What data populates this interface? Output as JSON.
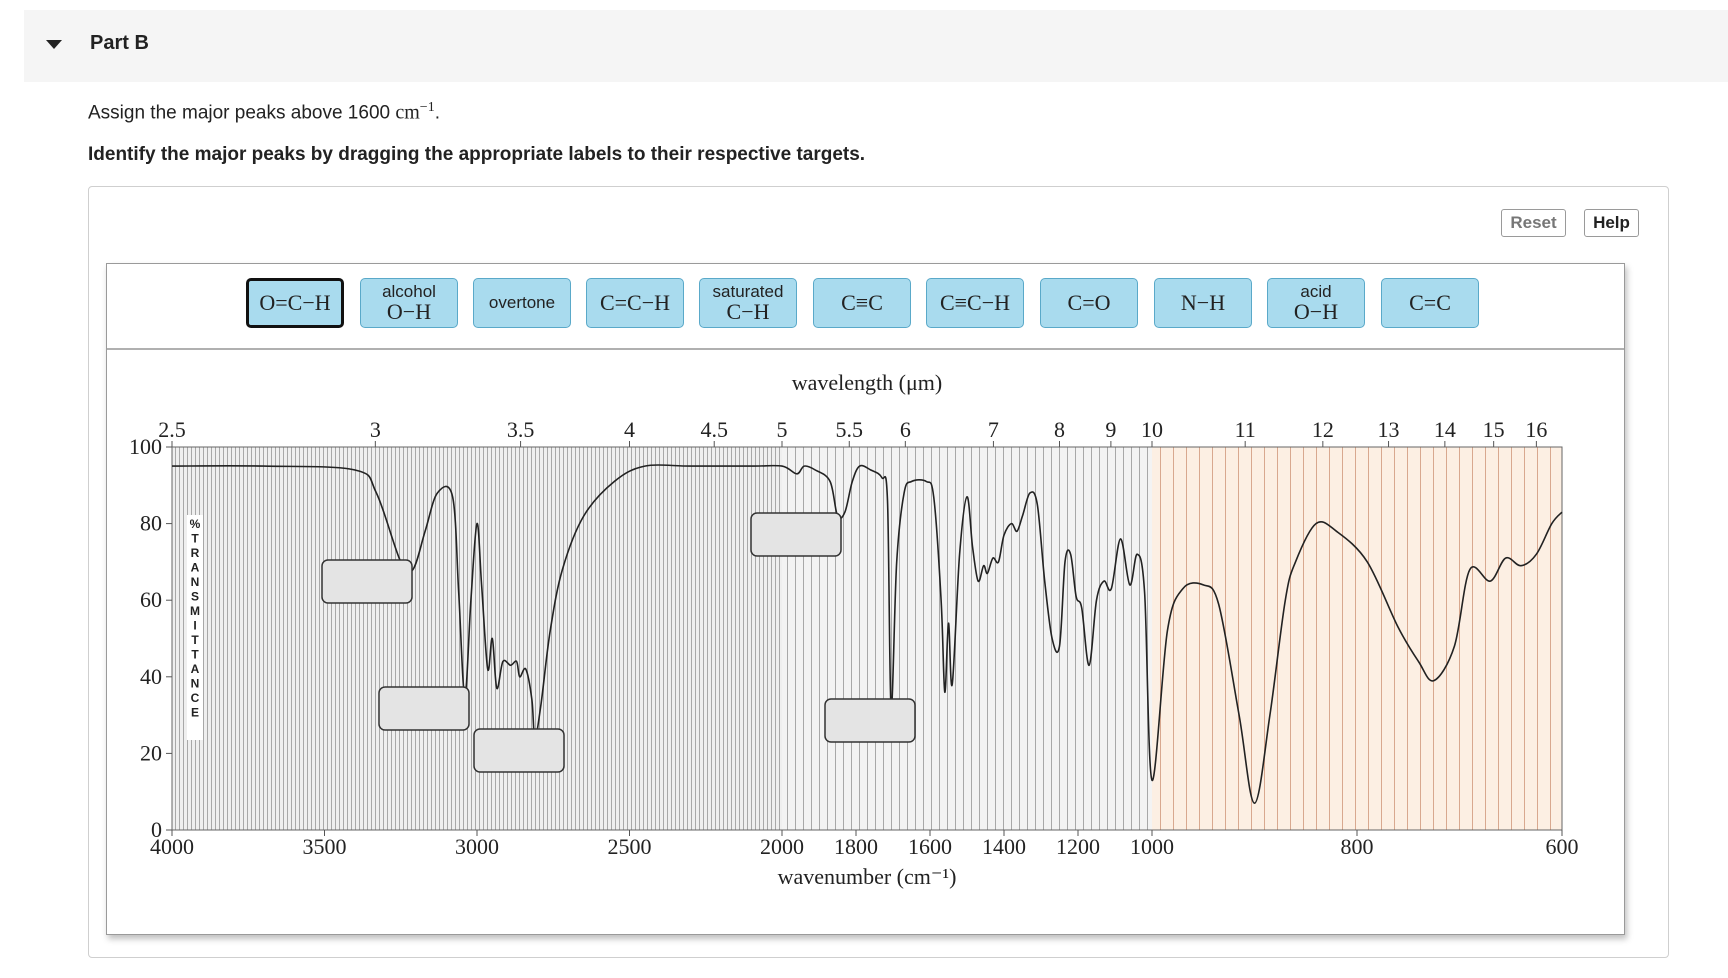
{
  "part": {
    "title": "Part B"
  },
  "prompt": {
    "text": "Assign the major peaks above 1600 ",
    "unit": "cm",
    "exponent": "−1",
    "end": "."
  },
  "instruction": "Identify the major peaks by dragging the appropriate labels to their respective targets.",
  "toolbar": {
    "reset_label": "Reset",
    "help_label": "Help"
  },
  "labels": [
    {
      "top": "",
      "formula": "O=C−H",
      "selected": true
    },
    {
      "top": "alcohol",
      "formula": "O−H"
    },
    {
      "top": "overtone",
      "formula": ""
    },
    {
      "top": "",
      "formula": "C=C−H"
    },
    {
      "top": "saturated",
      "formula": "C−H"
    },
    {
      "top": "",
      "formula": "C≡C"
    },
    {
      "top": "",
      "formula": "C≡C−H"
    },
    {
      "top": "",
      "formula": "C=O"
    },
    {
      "top": "",
      "formula": "N−H"
    },
    {
      "top": "acid",
      "formula": "O−H"
    },
    {
      "top": "",
      "formula": "C=C"
    }
  ],
  "chart_data": {
    "type": "line",
    "x_top_label": "wavelength (μm)",
    "xlabel": "wavenumber (cm⁻¹)",
    "ylabel": "%TRANSMITTANCE",
    "y_ticks": [
      "100",
      "80",
      "60",
      "40",
      "20",
      "0"
    ],
    "ylim": [
      0,
      100
    ],
    "x_bottom_ticks": [
      "4000",
      "3500",
      "3000",
      "2500",
      "2000",
      "1800",
      "1600",
      "1400",
      "1200",
      "1000",
      "800",
      "600"
    ],
    "x_top_ticks": [
      "2.5",
      "3",
      "3.5",
      "4",
      "4.5",
      "5",
      "5.5",
      "6",
      "7",
      "8",
      "9",
      "10",
      "11",
      "12",
      "13",
      "14",
      "15",
      "16"
    ],
    "spectrum": [
      [
        4000,
        95
      ],
      [
        3700,
        95
      ],
      [
        3400,
        94
      ],
      [
        3330,
        88
      ],
      [
        3250,
        70
      ],
      [
        3210,
        68
      ],
      [
        3170,
        78
      ],
      [
        3130,
        88
      ],
      [
        3080,
        87
      ],
      [
        3060,
        62
      ],
      [
        3040,
        35
      ],
      [
        3020,
        60
      ],
      [
        3000,
        80
      ],
      [
        2985,
        64
      ],
      [
        2965,
        42
      ],
      [
        2950,
        50
      ],
      [
        2935,
        37
      ],
      [
        2915,
        44
      ],
      [
        2890,
        43
      ],
      [
        2870,
        44
      ],
      [
        2860,
        40
      ],
      [
        2840,
        42
      ],
      [
        2820,
        34
      ],
      [
        2810,
        24
      ],
      [
        2790,
        33
      ],
      [
        2760,
        52
      ],
      [
        2720,
        68
      ],
      [
        2650,
        82
      ],
      [
        2550,
        91
      ],
      [
        2450,
        95
      ],
      [
        2300,
        95
      ],
      [
        2100,
        95
      ],
      [
        2000,
        95
      ],
      [
        1960,
        93
      ],
      [
        1940,
        95
      ],
      [
        1910,
        94
      ],
      [
        1870,
        91
      ],
      [
        1850,
        82
      ],
      [
        1830,
        83
      ],
      [
        1810,
        91
      ],
      [
        1790,
        95
      ],
      [
        1760,
        94
      ],
      [
        1730,
        92
      ],
      [
        1715,
        86
      ],
      [
        1705,
        32
      ],
      [
        1690,
        70
      ],
      [
        1670,
        88
      ],
      [
        1650,
        91
      ],
      [
        1610,
        91
      ],
      [
        1590,
        87
      ],
      [
        1570,
        60
      ],
      [
        1560,
        36
      ],
      [
        1550,
        54
      ],
      [
        1540,
        38
      ],
      [
        1520,
        72
      ],
      [
        1500,
        87
      ],
      [
        1485,
        74
      ],
      [
        1470,
        65
      ],
      [
        1455,
        69
      ],
      [
        1445,
        67
      ],
      [
        1430,
        71
      ],
      [
        1415,
        70
      ],
      [
        1400,
        77
      ],
      [
        1380,
        80
      ],
      [
        1365,
        78
      ],
      [
        1350,
        82
      ],
      [
        1330,
        88
      ],
      [
        1310,
        85
      ],
      [
        1290,
        65
      ],
      [
        1270,
        50
      ],
      [
        1250,
        48
      ],
      [
        1235,
        70
      ],
      [
        1220,
        72
      ],
      [
        1205,
        61
      ],
      [
        1190,
        58
      ],
      [
        1170,
        43
      ],
      [
        1150,
        60
      ],
      [
        1130,
        65
      ],
      [
        1110,
        63
      ],
      [
        1085,
        76
      ],
      [
        1060,
        64
      ],
      [
        1040,
        72
      ],
      [
        1020,
        62
      ],
      [
        1000,
        13
      ],
      [
        985,
        52
      ],
      [
        970,
        63
      ],
      [
        950,
        64
      ],
      [
        935,
        59
      ],
      [
        915,
        30
      ],
      [
        900,
        7
      ],
      [
        885,
        30
      ],
      [
        870,
        60
      ],
      [
        860,
        70
      ],
      [
        840,
        80
      ],
      [
        820,
        78
      ],
      [
        790,
        70
      ],
      [
        760,
        53
      ],
      [
        740,
        44
      ],
      [
        725,
        39
      ],
      [
        705,
        48
      ],
      [
        690,
        68
      ],
      [
        670,
        65
      ],
      [
        655,
        71
      ],
      [
        640,
        69
      ],
      [
        625,
        72
      ],
      [
        610,
        80
      ],
      [
        600,
        83
      ]
    ]
  }
}
